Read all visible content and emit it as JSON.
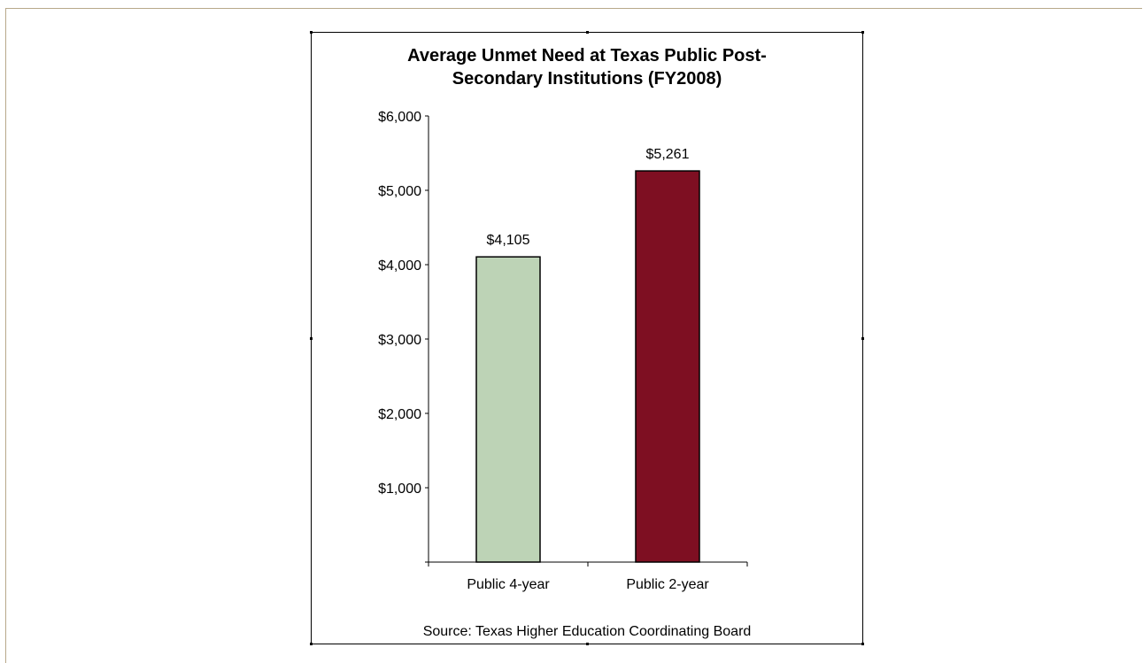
{
  "chart_data": {
    "type": "bar",
    "title_lines": [
      "Average Unmet Need at Texas Public Post-",
      "Secondary Institutions (FY2008)"
    ],
    "categories": [
      "Public 4-year",
      "Public 2-year"
    ],
    "values": [
      4105,
      5261
    ],
    "data_labels": [
      "$4,105",
      "$5,261"
    ],
    "bar_colors": [
      "#bdd3b6",
      "#7e0f22"
    ],
    "ylim": [
      0,
      6000
    ],
    "y_ticks": [
      {
        "value": 6000,
        "label": "$6,000"
      },
      {
        "value": 5000,
        "label": "$5,000"
      },
      {
        "value": 4000,
        "label": "$4,000"
      },
      {
        "value": 3000,
        "label": "$3,000"
      },
      {
        "value": 2000,
        "label": "$2,000"
      },
      {
        "value": 1000,
        "label": "$1,000"
      }
    ],
    "grid": false,
    "legend": "none",
    "source_note": "Source: Texas Higher Education Coordinating Board"
  }
}
